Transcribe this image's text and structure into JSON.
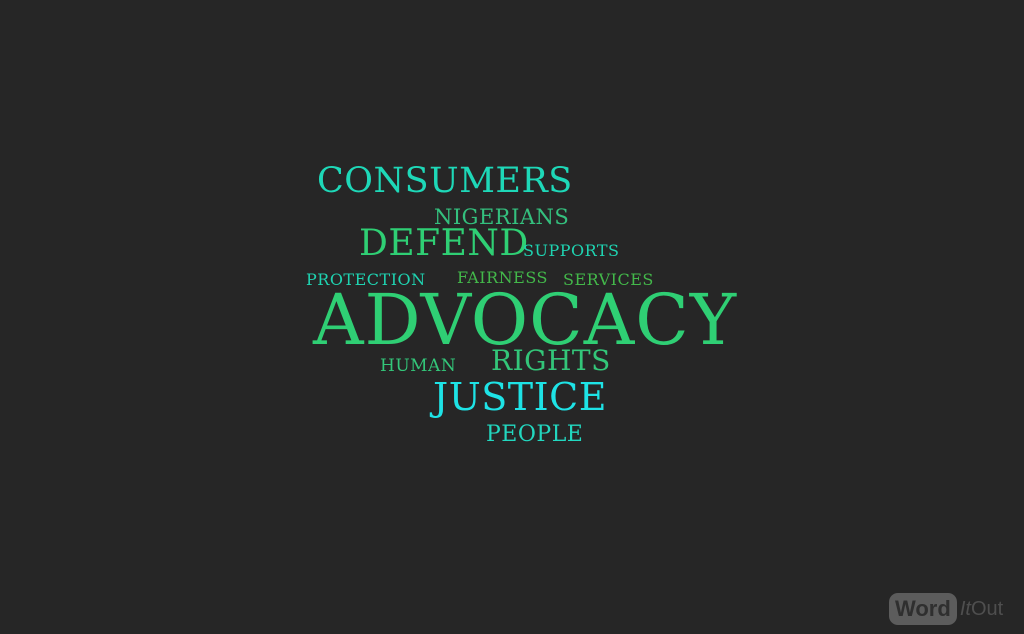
{
  "words": {
    "advocacy": "ADVOCACY",
    "consumers": "CONSUMERS",
    "nigerians": "NIGERIANS",
    "defend": "DEFEND",
    "supports": "SUPPORTS",
    "protection": "PROTECTION",
    "fairness": "FAIRNESS",
    "services": "SERVICES",
    "human": "HUMAN",
    "rights": "RIGHTS",
    "justice": "JUSTICE",
    "people": "PEOPLE"
  },
  "brand": {
    "word": "Word",
    "it": "It",
    "out": "Out"
  },
  "colors": {
    "background": "#262626",
    "green": "#2fcf74",
    "teal": "#1fd3b1",
    "cyan": "#1ee3e6",
    "olive-green": "#43b84a"
  }
}
